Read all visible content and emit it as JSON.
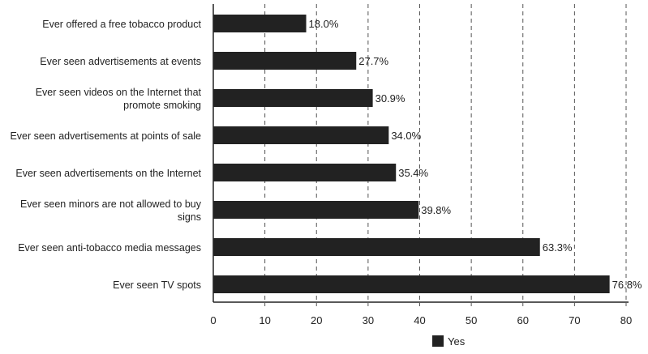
{
  "chart_data": {
    "type": "bar",
    "orientation": "horizontal",
    "title": "",
    "xlabel": "",
    "ylabel": "",
    "xlim": [
      0,
      80
    ],
    "xticks": [
      0,
      10,
      20,
      30,
      40,
      50,
      60,
      70,
      80
    ],
    "grid": "vertical dashed",
    "categories": [
      [
        "Ever offered a free tobacco product"
      ],
      [
        "Ever seen advertisements at events"
      ],
      [
        "Ever seen videos on the Internet that",
        "promote smoking"
      ],
      [
        "Ever seen advertisements at points of sale"
      ],
      [
        "Ever seen advertisements on the Internet"
      ],
      [
        "Ever seen minors are not allowed to buy",
        "signs"
      ],
      [
        "Ever seen anti-tobacco media messages"
      ],
      [
        "Ever seen TV spots"
      ]
    ],
    "series": [
      {
        "name": "Yes",
        "color": "#222222",
        "values": [
          18.0,
          27.7,
          30.9,
          34.0,
          35.4,
          39.8,
          63.3,
          76.8
        ],
        "labels": [
          "18.0%",
          "27.7%",
          "30.9%",
          "34.0%",
          "35.4%",
          "39.8%",
          "63.3%",
          "76.8%"
        ]
      }
    ],
    "legend": {
      "position": "bottom",
      "entries": [
        "Yes"
      ]
    }
  }
}
